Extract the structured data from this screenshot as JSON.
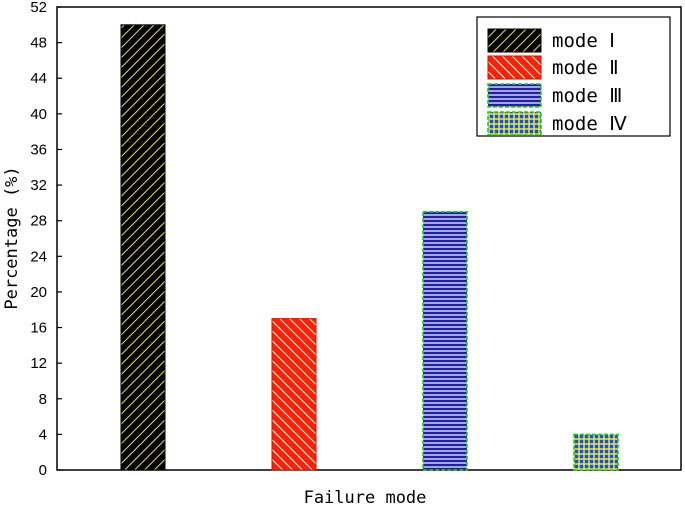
{
  "chart_data": {
    "type": "bar",
    "categories": [
      "mode Ⅰ",
      "mode Ⅱ",
      "mode Ⅲ",
      "mode Ⅳ"
    ],
    "values": [
      50,
      17,
      29,
      4
    ],
    "xlabel": "Failure mode",
    "ylabel": "Percentage (%)",
    "ylim": [
      0,
      52
    ],
    "yticks": [
      0,
      4,
      8,
      12,
      16,
      20,
      24,
      28,
      32,
      36,
      40,
      44,
      48,
      52
    ],
    "grid": false,
    "legend": {
      "position": "top-right",
      "entries": [
        "mode Ⅰ",
        "mode Ⅱ",
        "mode Ⅲ",
        "mode Ⅳ"
      ]
    },
    "bar_styles": [
      {
        "fill": "#000000",
        "stroke": "#000000",
        "pattern": "diagonal-up",
        "pattern_color": "#e6e64d"
      },
      {
        "fill": "#ff2200",
        "stroke": "#cc1100",
        "pattern": "diagonal-down",
        "pattern_color": "#ffffff"
      },
      {
        "fill": "#1f1fa8",
        "stroke": "#22cc22",
        "pattern": "horizontal",
        "pattern_color": "#ffffff"
      },
      {
        "fill": "#1f4fd0",
        "stroke": "#22cc22",
        "pattern": "grid",
        "pattern_color": "#f0f04a"
      }
    ]
  }
}
